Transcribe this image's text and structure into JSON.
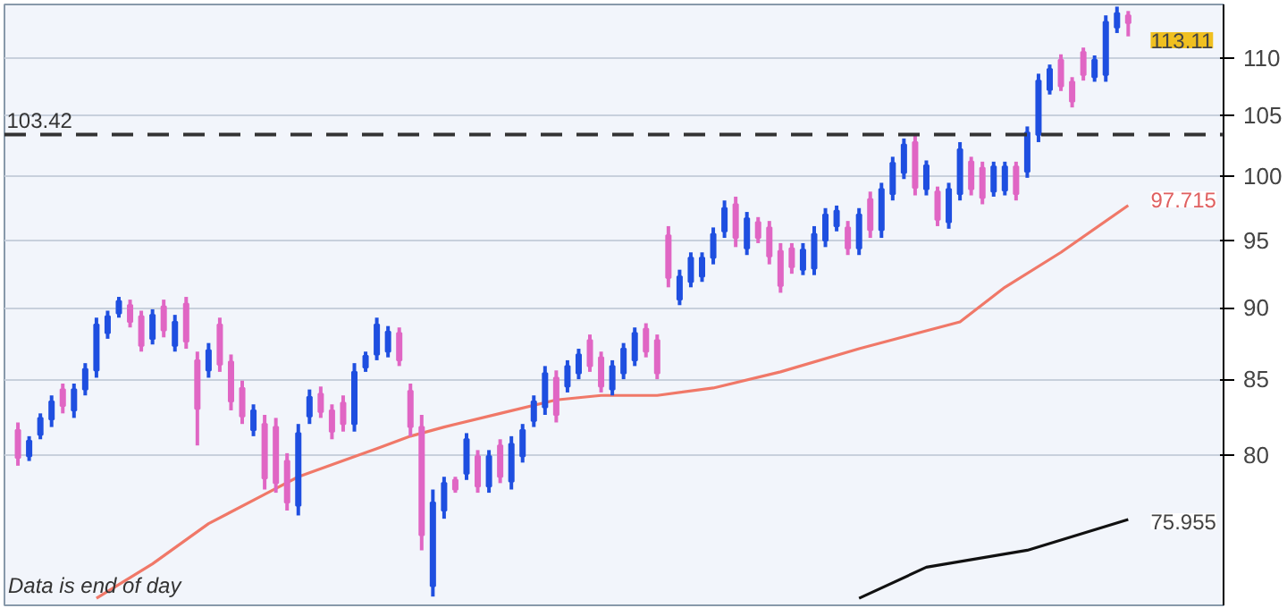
{
  "chart_data": {
    "type": "candlestick",
    "categories": [
      null,
      null,
      null,
      null,
      null,
      null,
      null,
      null,
      null,
      null,
      null,
      null,
      null,
      null,
      null,
      null,
      null,
      null,
      null,
      null,
      null,
      null,
      null,
      null,
      null,
      null,
      null,
      null,
      null,
      null,
      null,
      null,
      null,
      null,
      null,
      null,
      null,
      null,
      null,
      null,
      null,
      null,
      null,
      null,
      null,
      null,
      null,
      null,
      null,
      null,
      null,
      null,
      null,
      null,
      null,
      null,
      null,
      null,
      null,
      null,
      null,
      null,
      null,
      null,
      null,
      null,
      null,
      null,
      null,
      null,
      null,
      null,
      null,
      null,
      null,
      null,
      null,
      null,
      null,
      null,
      null,
      null,
      null,
      null,
      null,
      null,
      null,
      null,
      null,
      null,
      null,
      null,
      null,
      null,
      null,
      null,
      null,
      null,
      null,
      null
    ],
    "ohlc": [
      [
        81.6,
        82.1,
        79.3,
        79.8
      ],
      [
        79.9,
        81.2,
        79.6,
        80.9
      ],
      [
        81.3,
        82.7,
        81.0,
        82.4
      ],
      [
        82.3,
        83.9,
        81.8,
        83.5
      ],
      [
        84.3,
        84.7,
        82.7,
        83.2
      ],
      [
        82.9,
        84.7,
        82.4,
        84.3
      ],
      [
        84.3,
        86.1,
        83.9,
        85.7
      ],
      [
        85.6,
        89.3,
        85.1,
        88.8
      ],
      [
        88.2,
        89.8,
        87.8,
        89.4
      ],
      [
        89.6,
        90.8,
        89.3,
        90.5
      ],
      [
        90.2,
        90.6,
        88.6,
        89.0
      ],
      [
        89.4,
        89.8,
        86.9,
        87.3
      ],
      [
        87.8,
        89.9,
        87.4,
        89.5
      ],
      [
        90.1,
        90.6,
        87.9,
        88.4
      ],
      [
        87.3,
        89.5,
        86.9,
        89.0
      ],
      [
        90.3,
        90.8,
        87.1,
        87.6
      ],
      [
        86.3,
        86.9,
        80.6,
        83.0
      ],
      [
        85.6,
        87.5,
        85.1,
        87.0
      ],
      [
        88.8,
        89.3,
        85.5,
        86.0
      ],
      [
        86.2,
        86.7,
        82.9,
        83.5
      ],
      [
        84.4,
        84.9,
        82.0,
        82.5
      ],
      [
        81.6,
        83.3,
        81.2,
        82.9
      ],
      [
        82.0,
        82.6,
        77.8,
        78.5
      ],
      [
        81.8,
        82.4,
        77.6,
        78.2
      ],
      [
        79.6,
        80.1,
        76.5,
        77.0
      ],
      [
        76.8,
        82.0,
        76.2,
        81.4
      ],
      [
        82.5,
        84.3,
        82.0,
        83.8
      ],
      [
        84.0,
        84.5,
        82.4,
        82.8
      ],
      [
        82.9,
        83.3,
        81.0,
        81.5
      ],
      [
        83.4,
        83.9,
        81.5,
        82.0
      ],
      [
        82.0,
        86.1,
        81.5,
        85.5
      ],
      [
        85.8,
        86.9,
        85.5,
        86.6
      ],
      [
        86.7,
        89.3,
        86.3,
        88.8
      ],
      [
        86.9,
        88.7,
        86.5,
        88.3
      ],
      [
        88.2,
        88.6,
        85.9,
        86.3
      ],
      [
        84.2,
        84.7,
        81.2,
        81.8
      ],
      [
        81.8,
        82.6,
        74.1,
        75.0
      ],
      [
        72.0,
        77.8,
        71.4,
        77.0
      ],
      [
        76.5,
        78.6,
        76.0,
        78.2
      ],
      [
        78.4,
        78.6,
        77.6,
        77.8
      ],
      [
        78.8,
        81.4,
        78.4,
        81.0
      ],
      [
        79.9,
        80.3,
        77.6,
        78.0
      ],
      [
        78.0,
        80.3,
        77.6,
        79.9
      ],
      [
        80.6,
        81.0,
        78.2,
        78.6
      ],
      [
        78.3,
        81.2,
        77.8,
        80.7
      ],
      [
        79.9,
        82.0,
        79.5,
        81.6
      ],
      [
        82.2,
        83.9,
        81.8,
        83.5
      ],
      [
        83.1,
        85.9,
        82.6,
        85.4
      ],
      [
        85.1,
        85.6,
        82.1,
        82.6
      ],
      [
        84.5,
        86.3,
        84.1,
        85.9
      ],
      [
        85.4,
        87.1,
        85.0,
        86.7
      ],
      [
        87.7,
        88.1,
        85.5,
        85.9
      ],
      [
        86.5,
        86.9,
        84.1,
        84.5
      ],
      [
        84.3,
        86.3,
        83.9,
        85.9
      ],
      [
        85.4,
        87.5,
        85.0,
        87.1
      ],
      [
        86.3,
        88.6,
        85.9,
        88.2
      ],
      [
        88.5,
        88.9,
        86.5,
        86.9
      ],
      [
        87.7,
        88.1,
        85.0,
        85.4
      ],
      [
        95.4,
        96.1,
        91.5,
        92.2
      ],
      [
        90.6,
        92.8,
        90.2,
        92.3
      ],
      [
        91.9,
        94.1,
        91.5,
        93.7
      ],
      [
        92.3,
        94.1,
        91.9,
        93.7
      ],
      [
        93.7,
        96.0,
        93.2,
        95.5
      ],
      [
        95.7,
        98.1,
        95.2,
        97.5
      ],
      [
        97.8,
        98.4,
        94.5,
        95.2
      ],
      [
        94.4,
        97.2,
        93.9,
        96.7
      ],
      [
        96.4,
        96.8,
        94.8,
        95.2
      ],
      [
        96.0,
        96.5,
        93.2,
        93.8
      ],
      [
        94.2,
        94.8,
        91.1,
        91.6
      ],
      [
        94.4,
        94.8,
        92.5,
        93.0
      ],
      [
        92.8,
        94.8,
        92.4,
        94.3
      ],
      [
        92.9,
        96.1,
        92.4,
        95.5
      ],
      [
        95.0,
        97.5,
        94.5,
        97.0
      ],
      [
        96.1,
        97.7,
        95.7,
        97.3
      ],
      [
        96.0,
        96.5,
        93.9,
        94.4
      ],
      [
        94.4,
        97.5,
        93.9,
        97.0
      ],
      [
        98.2,
        98.8,
        95.2,
        95.8
      ],
      [
        95.8,
        99.5,
        95.2,
        99.0
      ],
      [
        98.6,
        101.6,
        98.1,
        101.1
      ],
      [
        100.3,
        103.1,
        99.8,
        102.6
      ],
      [
        102.8,
        103.4,
        98.5,
        99.1
      ],
      [
        99.0,
        101.3,
        98.5,
        100.9
      ],
      [
        98.8,
        99.2,
        96.1,
        96.6
      ],
      [
        96.4,
        99.5,
        95.9,
        99.0
      ],
      [
        98.6,
        102.8,
        98.1,
        102.2
      ],
      [
        101.2,
        101.6,
        98.5,
        99.0
      ],
      [
        100.7,
        101.2,
        97.8,
        98.3
      ],
      [
        98.8,
        101.2,
        98.4,
        100.8
      ],
      [
        98.9,
        101.2,
        98.5,
        100.8
      ],
      [
        100.8,
        101.2,
        98.1,
        98.6
      ],
      [
        100.4,
        104.1,
        99.9,
        103.6
      ],
      [
        103.4,
        108.6,
        102.8,
        108.0
      ],
      [
        107.2,
        109.4,
        106.8,
        109.0
      ],
      [
        109.8,
        110.3,
        107.1,
        107.5
      ],
      [
        107.9,
        108.3,
        105.7,
        106.2
      ],
      [
        110.5,
        110.9,
        108.0,
        108.5
      ],
      [
        108.3,
        110.2,
        107.9,
        109.8
      ],
      [
        108.5,
        113.8,
        107.9,
        113.2
      ],
      [
        112.7,
        114.6,
        112.2,
        114.0
      ],
      [
        113.8,
        114.2,
        111.9,
        113.11
      ]
    ],
    "colors": [
      "#e066c4",
      "#1f4fe0",
      "#1f4fe0",
      "#1f4fe0",
      "#e066c4",
      "#1f4fe0",
      "#1f4fe0",
      "#1f4fe0",
      "#1f4fe0",
      "#1f4fe0",
      "#e066c4",
      "#e066c4",
      "#1f4fe0",
      "#e066c4",
      "#1f4fe0",
      "#e066c4",
      "#e066c4",
      "#1f4fe0",
      "#e066c4",
      "#e066c4",
      "#e066c4",
      "#1f4fe0",
      "#e066c4",
      "#e066c4",
      "#e066c4",
      "#1f4fe0",
      "#1f4fe0",
      "#e066c4",
      "#e066c4",
      "#e066c4",
      "#1f4fe0",
      "#1f4fe0",
      "#1f4fe0",
      "#1f4fe0",
      "#e066c4",
      "#e066c4",
      "#e066c4",
      "#1f4fe0",
      "#1f4fe0",
      "#e066c4",
      "#1f4fe0",
      "#e066c4",
      "#1f4fe0",
      "#e066c4",
      "#1f4fe0",
      "#1f4fe0",
      "#1f4fe0",
      "#1f4fe0",
      "#e066c4",
      "#1f4fe0",
      "#1f4fe0",
      "#e066c4",
      "#e066c4",
      "#1f4fe0",
      "#1f4fe0",
      "#1f4fe0",
      "#e066c4",
      "#e066c4",
      "#e066c4",
      "#1f4fe0",
      "#1f4fe0",
      "#1f4fe0",
      "#1f4fe0",
      "#1f4fe0",
      "#e066c4",
      "#1f4fe0",
      "#e066c4",
      "#e066c4",
      "#e066c4",
      "#e066c4",
      "#1f4fe0",
      "#1f4fe0",
      "#1f4fe0",
      "#1f4fe0",
      "#e066c4",
      "#1f4fe0",
      "#e066c4",
      "#1f4fe0",
      "#1f4fe0",
      "#1f4fe0",
      "#e066c4",
      "#1f4fe0",
      "#e066c4",
      "#1f4fe0",
      "#1f4fe0",
      "#e066c4",
      "#e066c4",
      "#1f4fe0",
      "#1f4fe0",
      "#e066c4",
      "#1f4fe0",
      "#1f4fe0",
      "#1f4fe0",
      "#e066c4",
      "#e066c4",
      "#e066c4",
      "#1f4fe0",
      "#1f4fe0",
      "#1f4fe0",
      "#e066c4"
    ],
    "series": [
      {
        "type": "line",
        "color": "#f07868",
        "values": [
          null,
          null,
          null,
          null,
          null,
          null,
          null,
          71.3,
          null,
          null,
          null,
          null,
          73.3,
          null,
          null,
          null,
          null,
          75.7,
          null,
          null,
          null,
          null,
          77.5,
          null,
          null,
          78.6,
          null,
          null,
          null,
          null,
          null,
          null,
          80.4,
          null,
          null,
          81.2,
          null,
          null,
          81.8,
          null,
          null,
          null,
          null,
          82.7,
          null,
          null,
          null,
          null,
          83.6,
          null,
          null,
          null,
          83.9,
          null,
          null,
          null,
          null,
          83.9,
          null,
          null,
          null,
          null,
          84.4,
          null,
          null,
          null,
          null,
          null,
          85.5,
          null,
          null,
          null,
          null,
          null,
          null,
          87.1,
          null,
          null,
          null,
          null,
          null,
          null,
          null,
          null,
          89.0,
          null,
          null,
          null,
          91.5,
          null,
          null,
          null,
          null,
          94.1,
          null,
          null,
          null,
          null,
          null,
          97.715
        ]
      },
      {
        "type": "line",
        "color": "#111111",
        "values": [
          null,
          null,
          null,
          null,
          null,
          null,
          null,
          null,
          null,
          null,
          null,
          null,
          null,
          null,
          null,
          null,
          null,
          null,
          null,
          null,
          null,
          null,
          null,
          null,
          null,
          null,
          null,
          null,
          null,
          null,
          null,
          null,
          null,
          null,
          null,
          null,
          null,
          null,
          null,
          null,
          null,
          null,
          null,
          null,
          null,
          null,
          null,
          null,
          null,
          null,
          null,
          null,
          null,
          null,
          null,
          null,
          null,
          null,
          null,
          null,
          null,
          null,
          null,
          null,
          null,
          null,
          null,
          null,
          null,
          null,
          null,
          null,
          null,
          null,
          null,
          71.3,
          null,
          null,
          null,
          null,
          null,
          73.1,
          null,
          null,
          null,
          null,
          null,
          null,
          null,
          null,
          74.1,
          null,
          null,
          null,
          null,
          null,
          null,
          null,
          null,
          75.955
        ]
      }
    ],
    "ref_lines": [
      {
        "axis": "y",
        "value": 103.42,
        "label": "103.42",
        "color": "#333333",
        "line_style": "dashed"
      }
    ],
    "annotations": [
      "113.11",
      "97.715",
      "75.955",
      "Data is end of day"
    ],
    "log": true,
    "ylim": [
      70.9,
      114.8
    ],
    "yticks": [
      80,
      85,
      90,
      95,
      100,
      105,
      110
    ],
    "grid": "y",
    "tick_labels": "y"
  }
}
